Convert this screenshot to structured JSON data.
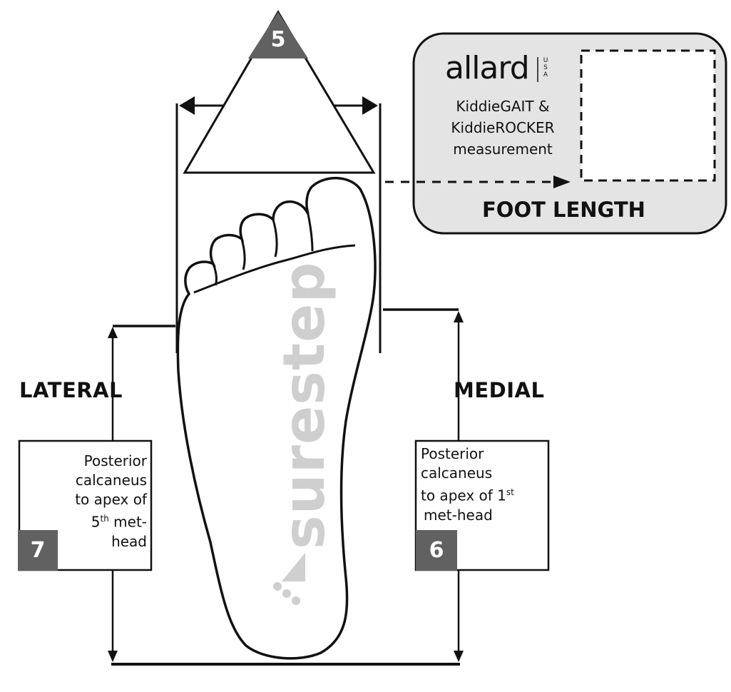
{
  "top_marker": {
    "number": "5"
  },
  "card": {
    "brand": "allard",
    "brand_sub": "USA",
    "line1": "KiddieGAIT &",
    "line2": "KiddieROCKER",
    "line3": "measurement",
    "caption": "FOOT LENGTH"
  },
  "lateral": {
    "title": "LATERAL",
    "line1": "Posterior",
    "line2": "calcaneus",
    "line3": "to apex of",
    "line4_main": "5",
    "line4_sup": "th",
    "line4_rest": " met-",
    "line5": "head",
    "number": "7"
  },
  "medial": {
    "title": "MEDIAL",
    "line1": "Posterior",
    "line2": "calcaneus",
    "line3_main": "to apex of 1",
    "line3_sup": "st",
    "line4": "met-head",
    "number": "6"
  },
  "watermark": {
    "text": "surestep"
  },
  "colors": {
    "badge": "#616161",
    "card_bg": "#e4e4e4",
    "watermark": "#cfcfcf",
    "line": "#111111"
  }
}
